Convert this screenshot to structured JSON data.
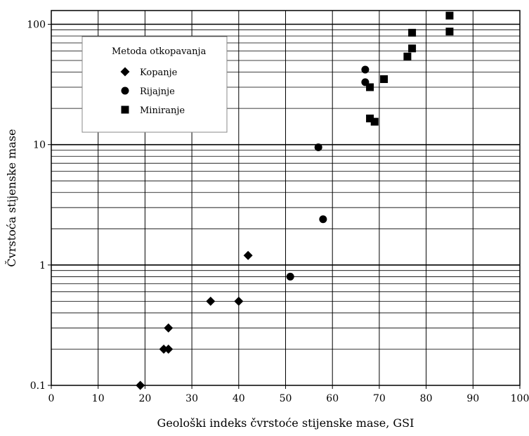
{
  "chart_data": {
    "type": "scatter",
    "xlabel": "Geološki indeks čvrstoće stijenske mase, GSI",
    "ylabel": "Čvrstoća stijenske mase",
    "xlim": [
      0,
      100
    ],
    "ylim": [
      0.1,
      130
    ],
    "y_scale": "log",
    "grid": true,
    "x_ticks": [
      "0",
      "10",
      "20",
      "30",
      "40",
      "50",
      "60",
      "70",
      "80",
      "90",
      "100"
    ],
    "y_ticks": [
      "0.1",
      "1",
      "10",
      "100"
    ],
    "legend": {
      "title": "Metoda otkopavanja",
      "placement": "top-left"
    },
    "series": [
      {
        "name": "Kopanje",
        "marker": "diamond",
        "points": [
          {
            "x": 19,
            "y": 0.1
          },
          {
            "x": 24,
            "y": 0.2
          },
          {
            "x": 25,
            "y": 0.2
          },
          {
            "x": 25,
            "y": 0.3
          },
          {
            "x": 34,
            "y": 0.5
          },
          {
            "x": 40,
            "y": 0.5
          },
          {
            "x": 42,
            "y": 1.2
          }
        ]
      },
      {
        "name": "Rijajnje",
        "marker": "circle",
        "points": [
          {
            "x": 51,
            "y": 0.8
          },
          {
            "x": 57,
            "y": 9.5
          },
          {
            "x": 58,
            "y": 2.4
          },
          {
            "x": 67,
            "y": 42
          },
          {
            "x": 67,
            "y": 33
          }
        ]
      },
      {
        "name": "Miniranje",
        "marker": "square",
        "points": [
          {
            "x": 68,
            "y": 30
          },
          {
            "x": 68,
            "y": 16.5
          },
          {
            "x": 69,
            "y": 15.5
          },
          {
            "x": 71,
            "y": 35
          },
          {
            "x": 76,
            "y": 54
          },
          {
            "x": 77,
            "y": 85
          },
          {
            "x": 77,
            "y": 63
          },
          {
            "x": 85,
            "y": 118
          },
          {
            "x": 85,
            "y": 87
          }
        ]
      }
    ]
  }
}
